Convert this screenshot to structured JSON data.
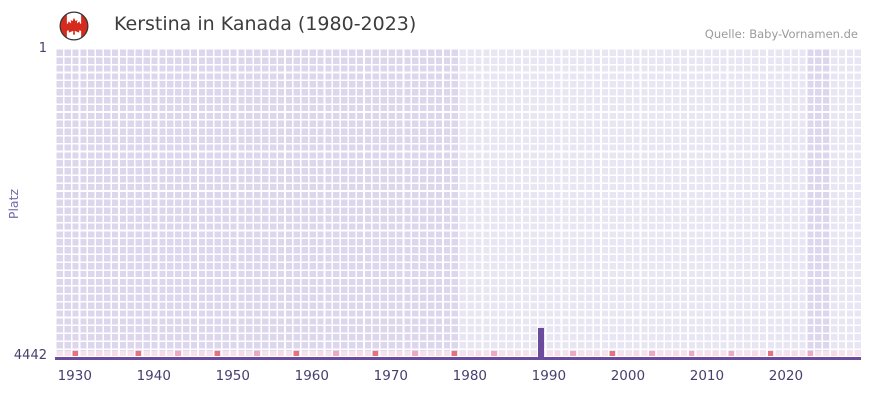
{
  "header": {
    "title": "Kerstina in Kanada (1980-2023)",
    "source": "Quelle: Baby-Vornamen.de",
    "flag_icon": "canada-flag-icon",
    "flag_red": "#d52b1e"
  },
  "chart_data": {
    "type": "bar",
    "title": "Kerstina in Kanada (1980-2023)",
    "name": "Kerstina",
    "region": "Kanada",
    "ylabel": "Platz",
    "y_axis_inverted": true,
    "y_domain": [
      1,
      4442
    ],
    "y_tick_labels": [
      "1",
      "4442"
    ],
    "x_domain": [
      1927.5,
      2029.5
    ],
    "x_ticks": [
      1930,
      1940,
      1950,
      1960,
      1970,
      1980,
      1990,
      2000,
      2010,
      2020
    ],
    "grid": true,
    "legend": false,
    "points": [
      {
        "year": 1989,
        "rank": 3990
      }
    ],
    "shaded_regions": [
      {
        "from": 1927.5,
        "to": 1978.5
      },
      {
        "from": 2022.5,
        "to": 2025.5
      }
    ],
    "bottom_marks": [
      {
        "year": 1930,
        "level": "strong"
      },
      {
        "year": 1933,
        "level": "light"
      },
      {
        "year": 1935,
        "level": "light"
      },
      {
        "year": 1938,
        "level": "strong"
      },
      {
        "year": 1941,
        "level": "light"
      },
      {
        "year": 1943,
        "level": "medium"
      },
      {
        "year": 1946,
        "level": "light"
      },
      {
        "year": 1948,
        "level": "strong"
      },
      {
        "year": 1951,
        "level": "light"
      },
      {
        "year": 1953,
        "level": "medium"
      },
      {
        "year": 1956,
        "level": "light"
      },
      {
        "year": 1958,
        "level": "strong"
      },
      {
        "year": 1961,
        "level": "light"
      },
      {
        "year": 1963,
        "level": "medium"
      },
      {
        "year": 1966,
        "level": "light"
      },
      {
        "year": 1968,
        "level": "strong"
      },
      {
        "year": 1971,
        "level": "light"
      },
      {
        "year": 1973,
        "level": "medium"
      },
      {
        "year": 1976,
        "level": "light"
      },
      {
        "year": 1978,
        "level": "strong"
      },
      {
        "year": 1981,
        "level": "light"
      },
      {
        "year": 1983,
        "level": "medium"
      },
      {
        "year": 1986,
        "level": "light"
      },
      {
        "year": 1991,
        "level": "light"
      },
      {
        "year": 1993,
        "level": "medium"
      },
      {
        "year": 1996,
        "level": "light"
      },
      {
        "year": 1998,
        "level": "strong"
      },
      {
        "year": 2001,
        "level": "light"
      },
      {
        "year": 2003,
        "level": "medium"
      },
      {
        "year": 2006,
        "level": "light"
      },
      {
        "year": 2008,
        "level": "medium"
      },
      {
        "year": 2011,
        "level": "light"
      },
      {
        "year": 2013,
        "level": "medium"
      },
      {
        "year": 2016,
        "level": "light"
      },
      {
        "year": 2018,
        "level": "strong"
      },
      {
        "year": 2021,
        "level": "light"
      },
      {
        "year": 2023,
        "level": "medium"
      },
      {
        "year": 2026,
        "level": "light"
      }
    ],
    "colors": {
      "plot_bg": "#e9e6f4",
      "shade": "#dcd7ec",
      "grid": "#ffffff",
      "bar": "#6a4b9d",
      "axis_line": "#6a4b9d",
      "strip_base": "#f5e2ed",
      "mark_strong": "#e4737c",
      "mark_medium": "#efa8c4",
      "mark_light": "#f7d9e7"
    }
  }
}
